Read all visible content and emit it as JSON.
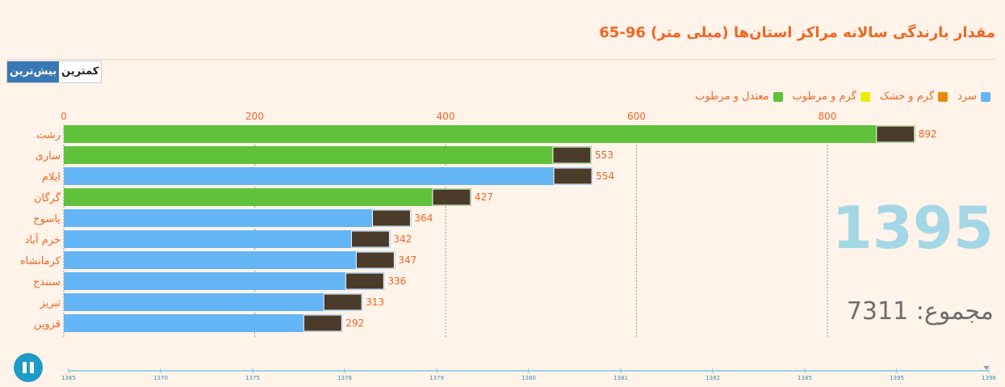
{
  "title": "مقدار بارندگی سالانه مراکز استان‌ها (میلی متر) 96-65",
  "toggle": {
    "active_label": "بیش‌ترین",
    "inactive_label": "کمترین"
  },
  "legend": [
    {
      "label": "معتدل و مرطوب",
      "color": "#5fc23a"
    },
    {
      "label": "گرم و مرطوب",
      "color": "#e8f000"
    },
    {
      "label": "گرم و خشک",
      "color": "#e8890c"
    },
    {
      "label": "سرد",
      "color": "#64b5f6"
    }
  ],
  "current_year": "1395",
  "total_text": "مجموع: 7311",
  "chart_data": {
    "type": "bar",
    "orientation": "horizontal",
    "xlim": [
      0,
      900
    ],
    "x_ticks": [
      0,
      200,
      400,
      600,
      800
    ],
    "grid": true,
    "categories": [
      "رشت",
      "ساری",
      "ایلام",
      "گرگان",
      "یاسوج",
      "خرم آباد",
      "کرمانشاه",
      "سنندج",
      "تبریز",
      "قزوین"
    ],
    "values": [
      892,
      553,
      554,
      427,
      364,
      342,
      347,
      336,
      313,
      292
    ],
    "climate": [
      "معتدل و مرطوب",
      "معتدل و مرطوب",
      "سرد",
      "معتدل و مرطوب",
      "سرد",
      "سرد",
      "سرد",
      "سرد",
      "سرد",
      "سرد"
    ],
    "timeline": {
      "ticks": [
        "1365",
        "1370",
        "1375",
        "1378",
        "1379",
        "1380",
        "1381",
        "1382",
        "1385",
        "1395",
        "1396"
      ],
      "current": "1395"
    }
  }
}
